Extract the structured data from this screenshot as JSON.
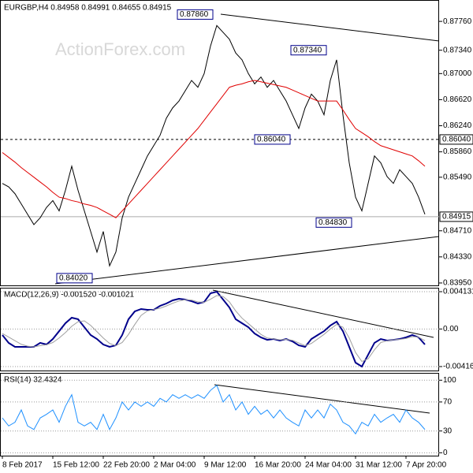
{
  "chart_data": [
    {
      "type": "line",
      "title": "EURGBP,H4 0.84958 0.84991 0.84655 0.84915",
      "watermark": "ActionForex.com",
      "categories": [
        "8 Feb 2017",
        null,
        null,
        null,
        null,
        null,
        null,
        null,
        "15 Feb 12:00",
        null,
        null,
        null,
        null,
        null,
        null,
        null,
        "22 Feb 20:00",
        null,
        null,
        null,
        null,
        null,
        null,
        null,
        "2 Mar 04:00",
        null,
        null,
        null,
        null,
        null,
        null,
        null,
        "9 Mar 12:00",
        null,
        null,
        null,
        null,
        null,
        null,
        null,
        "16 Mar 20:00",
        null,
        null,
        null,
        null,
        null,
        null,
        null,
        "24 Mar 04:00",
        null,
        null,
        null,
        null,
        null,
        null,
        null,
        "31 Mar 12:00",
        null,
        null,
        null,
        null,
        null,
        null,
        null,
        "7 Apr 20:00",
        null,
        null,
        null
      ],
      "series": [
        {
          "color": "#000000",
          "values": [
            0.854,
            0.8535,
            0.8525,
            0.851,
            0.8495,
            0.848,
            0.849,
            0.8505,
            0.8515,
            0.85,
            0.853,
            0.8565,
            0.853,
            0.85,
            0.847,
            0.844,
            0.847,
            0.842,
            0.844,
            0.849,
            0.852,
            0.854,
            0.856,
            0.858,
            0.8595,
            0.861,
            0.8635,
            0.865,
            0.866,
            0.8675,
            0.869,
            0.868,
            0.87,
            0.874,
            0.877,
            0.876,
            0.875,
            0.873,
            0.872,
            0.87,
            0.8685,
            0.8695,
            0.868,
            0.869,
            0.8675,
            0.866,
            0.864,
            0.862,
            0.865,
            0.867,
            0.866,
            0.864,
            0.869,
            0.872,
            0.864,
            0.857,
            0.852,
            0.85,
            0.854,
            0.858,
            0.857,
            0.855,
            0.854,
            0.856,
            0.855,
            0.854,
            0.852,
            0.8495
          ]
        },
        {
          "color": "#e00000",
          "values": [
            0.8585,
            0.8578,
            0.8571,
            0.8563,
            0.8556,
            0.8549,
            0.8542,
            0.8535,
            0.8527,
            0.852,
            0.8518,
            0.8515,
            0.8513,
            0.851,
            0.8508,
            0.8505,
            0.85,
            0.8495,
            0.849,
            0.85,
            0.851,
            0.852,
            0.853,
            0.854,
            0.855,
            0.856,
            0.857,
            0.858,
            0.859,
            0.86,
            0.861,
            0.862,
            0.8632,
            0.8644,
            0.8656,
            0.8668,
            0.868,
            0.8683,
            0.8685,
            0.8688,
            0.869,
            0.8688,
            0.8686,
            0.8684,
            0.8682,
            0.868,
            0.8676,
            0.8672,
            0.8668,
            0.8664,
            0.866,
            0.866,
            0.866,
            0.866,
            0.8647,
            0.8633,
            0.862,
            0.8614,
            0.8608,
            0.8601,
            0.8595,
            0.8592,
            0.8589,
            0.8586,
            0.8583,
            0.858,
            0.8573,
            0.8565
          ]
        }
      ],
      "ylim": [
        0.83915,
        0.8806
      ],
      "yticks": [
        {
          "value": 0.8776,
          "label": "0.87760"
        },
        {
          "value": 0.8734,
          "label": "0.87340"
        },
        {
          "value": 0.87,
          "label": "0.87000"
        },
        {
          "value": 0.8662,
          "label": "0.86620"
        },
        {
          "value": 0.8624,
          "label": "0.86240"
        },
        {
          "value": 0.8586,
          "label": "0.85860"
        },
        {
          "value": 0.8549,
          "label": "0.85490"
        },
        {
          "value": 0.8471,
          "label": "0.84710"
        },
        {
          "value": 0.8433,
          "label": "0.84330"
        },
        {
          "value": 0.8395,
          "label": "0.83950"
        }
      ],
      "annotations": [
        {
          "value": 0.8786,
          "label": "0.87860"
        },
        {
          "value": 0.8734,
          "label": "0.87340"
        },
        {
          "value": 0.8604,
          "label": "0.86040"
        },
        {
          "value": 0.8483,
          "label": "0.84830"
        },
        {
          "value": 0.8402,
          "label": "0.84020"
        }
      ],
      "last_price": 0.84915,
      "grid": false
    },
    {
      "type": "line",
      "title": "MACD(12,26,9) -0.001520 -0.001021",
      "series": [
        {
          "color": "#00008b",
          "values": [
            -0.00067,
            -0.00154,
            -0.00198,
            -0.00198,
            -0.00198,
            -0.00198,
            -0.00154,
            -0.00172,
            -0.00111,
            -0.00024,
            0.00064,
            0.00125,
            0.00108,
            0.0002,
            -0.00067,
            -0.00111,
            -0.00172,
            -0.00198,
            -0.00181,
            -0.00067,
            0.00108,
            0.00195,
            0.00221,
            0.00212,
            0.00212,
            0.00256,
            0.00282,
            0.00317,
            0.00334,
            0.00326,
            0.00308,
            0.00282,
            0.00299,
            0.00395,
            0.00413,
            0.00326,
            0.00238,
            0.00108,
            0.00064,
            0.0002,
            -0.0005,
            -0.00093,
            -0.0012,
            -0.00111,
            -0.00128,
            -0.00111,
            -0.00137,
            -0.00181,
            -0.00198,
            -0.00111,
            -0.00067,
            -0.00024,
            0.00038,
            0.00081,
            -0.00024,
            -0.00198,
            -0.00373,
            -0.00416,
            -0.00285,
            -0.00154,
            -0.00111,
            -0.00128,
            -0.0012,
            -0.00111,
            -0.00093,
            -0.00067,
            -0.00093,
            -0.00172
          ]
        },
        {
          "color": "#a0a0a0",
          "values": [
            -0.0005,
            -0.0009,
            -0.0013,
            -0.0017,
            -0.0019,
            -0.00198,
            -0.00185,
            -0.00175,
            -0.0015,
            -0.001,
            -0.0004,
            0.0003,
            0.0008,
            0.0009,
            0.0004,
            -0.0003,
            -0.001,
            -0.0016,
            -0.00185,
            -0.0015,
            -0.0006,
            0.0005,
            0.0015,
            0.002,
            0.00215,
            0.0023,
            0.00255,
            0.00285,
            0.0031,
            0.00325,
            0.0032,
            0.003,
            0.00295,
            0.0033,
            0.0037,
            0.0036,
            0.003,
            0.002,
            0.0012,
            0.0006,
            0,
            -0.0006,
            -0.001,
            -0.0011,
            -0.0012,
            -0.00115,
            -0.00125,
            -0.00155,
            -0.00185,
            -0.0016,
            -0.0011,
            -0.0006,
            0,
            0.0005,
            0.0002,
            -0.001,
            -0.0026,
            -0.0036,
            -0.0033,
            -0.0023,
            -0.0015,
            -0.0013,
            -0.0012,
            -0.00115,
            -0.00105,
            -0.00085,
            -0.0009,
            -0.0013
          ]
        }
      ],
      "ylim": [
        -0.0046,
        0.00448
      ],
      "yticks": [
        0.004131,
        {
          "value": 0,
          "label": "0.00"
        },
        -0.004162
      ],
      "grid": true
    },
    {
      "type": "line",
      "title": "RSI(14) 32.4324",
      "series": [
        {
          "color": "#1e90ff",
          "values": [
            48,
            37,
            42,
            59,
            37,
            32,
            48,
            53,
            59,
            42,
            64,
            80,
            42,
            37,
            42,
            32,
            53,
            32,
            48,
            70,
            59,
            70,
            64,
            70,
            64,
            75,
            70,
            80,
            75,
            80,
            75,
            80,
            75,
            86,
            93,
            70,
            80,
            59,
            70,
            53,
            64,
            53,
            59,
            48,
            59,
            48,
            42,
            37,
            59,
            48,
            59,
            48,
            67,
            59,
            42,
            37,
            26,
            42,
            37,
            53,
            42,
            48,
            53,
            42,
            59,
            48,
            42,
            32
          ]
        }
      ],
      "ylim": [
        -4,
        109
      ],
      "yticks": [
        100,
        70,
        30,
        0
      ],
      "grid": true
    }
  ]
}
